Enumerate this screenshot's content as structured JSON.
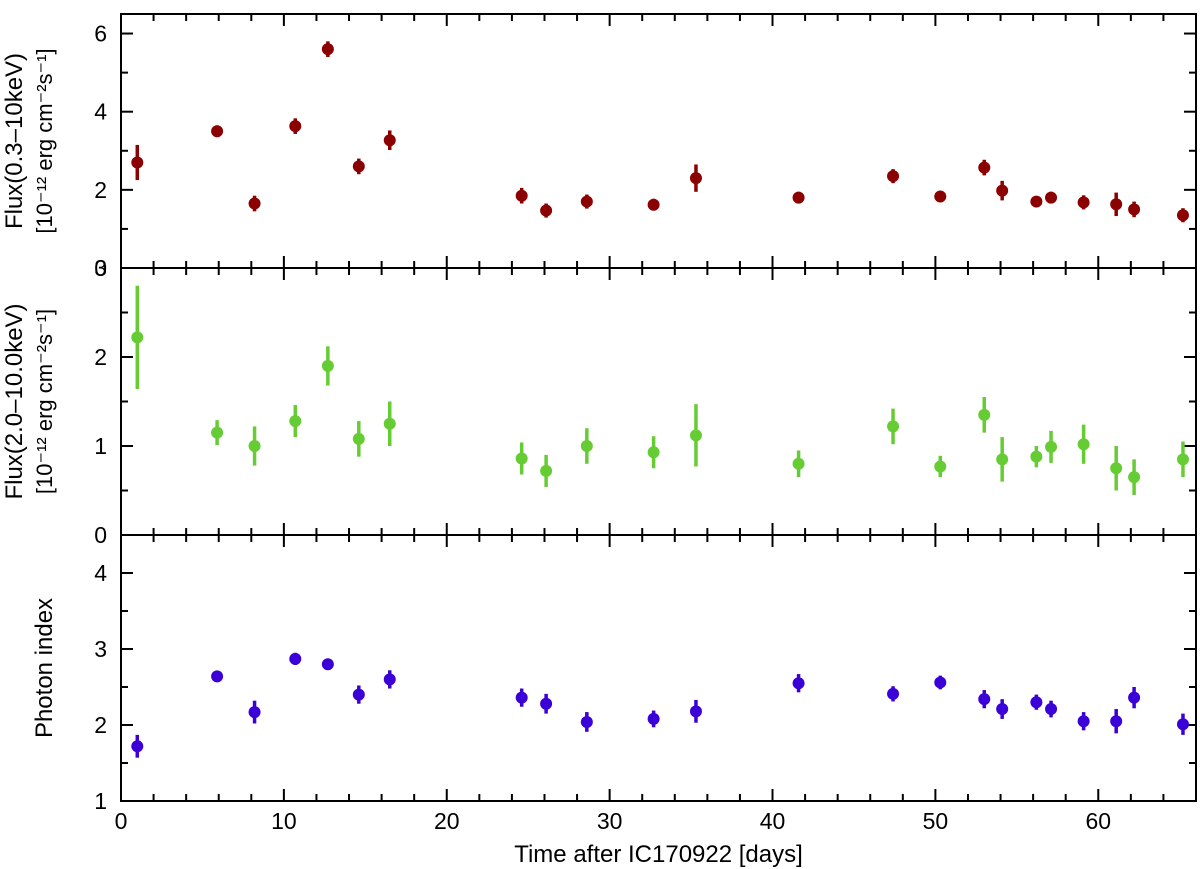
{
  "chart_data": [
    {
      "type": "scatter",
      "panel": "top",
      "ylabel": "Flux(0.3–10keV)",
      "ylabel_units": "[10⁻¹² erg cm⁻²s⁻¹]",
      "ylim": [
        0,
        6.5
      ],
      "yticks": [
        0,
        2,
        4,
        6
      ],
      "ytick_labels": [
        "0",
        "2",
        "4",
        "6"
      ],
      "xlim": [
        0,
        66
      ],
      "color": "#8b0000",
      "series": [
        {
          "x": [
            1.0,
            5.9,
            8.2,
            10.7,
            12.7,
            14.6,
            16.5,
            24.6,
            26.1,
            28.6,
            32.7,
            35.3,
            41.6,
            47.4,
            50.3,
            53.0,
            54.1,
            56.2,
            57.1,
            59.1,
            61.1,
            62.2,
            65.2
          ],
          "y": [
            2.7,
            3.5,
            1.65,
            3.63,
            5.6,
            2.6,
            3.27,
            1.85,
            1.47,
            1.7,
            1.62,
            2.3,
            1.8,
            2.35,
            1.83,
            2.57,
            1.98,
            1.7,
            1.8,
            1.68,
            1.63,
            1.5,
            1.35
          ],
          "yerr": [
            0.45,
            0.15,
            0.2,
            0.2,
            0.2,
            0.2,
            0.25,
            0.2,
            0.18,
            0.18,
            0.15,
            0.35,
            0.15,
            0.18,
            0.1,
            0.2,
            0.25,
            0.1,
            0.15,
            0.18,
            0.3,
            0.2,
            0.18
          ]
        }
      ]
    },
    {
      "type": "scatter",
      "panel": "middle",
      "ylabel": "Flux(2.0–10.0keV)",
      "ylabel_units": "[10⁻¹² erg cm⁻²s⁻¹]",
      "ylim": [
        0,
        3
      ],
      "yticks": [
        0,
        1,
        2,
        3
      ],
      "ytick_labels": [
        "0",
        "1",
        "2",
        "3"
      ],
      "xlim": [
        0,
        66
      ],
      "color": "#66cc33",
      "series": [
        {
          "x": [
            1.0,
            5.9,
            8.2,
            10.7,
            12.7,
            14.6,
            16.5,
            24.6,
            26.1,
            28.6,
            32.7,
            35.3,
            41.6,
            47.4,
            50.3,
            53.0,
            54.1,
            56.2,
            57.1,
            59.1,
            61.1,
            62.2,
            65.2
          ],
          "y": [
            2.22,
            1.15,
            1.0,
            1.28,
            1.9,
            1.08,
            1.25,
            0.86,
            0.72,
            1.0,
            0.93,
            1.12,
            0.8,
            1.22,
            0.77,
            1.35,
            0.85,
            0.88,
            0.99,
            1.02,
            0.75,
            0.65,
            0.85
          ],
          "yerr": [
            0.58,
            0.14,
            0.22,
            0.18,
            0.22,
            0.2,
            0.25,
            0.18,
            0.18,
            0.2,
            0.18,
            0.35,
            0.15,
            0.2,
            0.12,
            0.2,
            0.25,
            0.12,
            0.18,
            0.22,
            0.25,
            0.2,
            0.2
          ]
        }
      ]
    },
    {
      "type": "scatter",
      "panel": "bottom",
      "ylabel": "Photon index",
      "ylim": [
        1,
        4.5
      ],
      "yticks": [
        1,
        2,
        3,
        4
      ],
      "ytick_labels": [
        "1",
        "2",
        "3",
        "4"
      ],
      "xlim": [
        0,
        66
      ],
      "xticks": [
        0,
        10,
        20,
        30,
        40,
        50,
        60
      ],
      "xtick_labels": [
        "0",
        "10",
        "20",
        "30",
        "40",
        "50",
        "60"
      ],
      "xlabel": "Time after IC170922 [days]",
      "color": "#3b00d8",
      "series": [
        {
          "x": [
            1.0,
            5.9,
            8.2,
            10.7,
            12.7,
            14.6,
            16.5,
            24.6,
            26.1,
            28.6,
            32.7,
            35.3,
            41.6,
            47.4,
            50.3,
            53.0,
            54.1,
            56.2,
            57.1,
            59.1,
            61.1,
            62.2,
            65.2
          ],
          "y": [
            1.72,
            2.64,
            2.17,
            2.87,
            2.8,
            2.4,
            2.6,
            2.36,
            2.28,
            2.04,
            2.08,
            2.18,
            2.55,
            2.41,
            2.56,
            2.34,
            2.21,
            2.3,
            2.21,
            2.05,
            2.05,
            2.36,
            2.01
          ],
          "yerr": [
            0.15,
            0.06,
            0.15,
            0.08,
            0.06,
            0.12,
            0.12,
            0.12,
            0.13,
            0.13,
            0.11,
            0.15,
            0.12,
            0.1,
            0.09,
            0.12,
            0.13,
            0.1,
            0.11,
            0.12,
            0.16,
            0.14,
            0.14
          ]
        }
      ]
    }
  ]
}
